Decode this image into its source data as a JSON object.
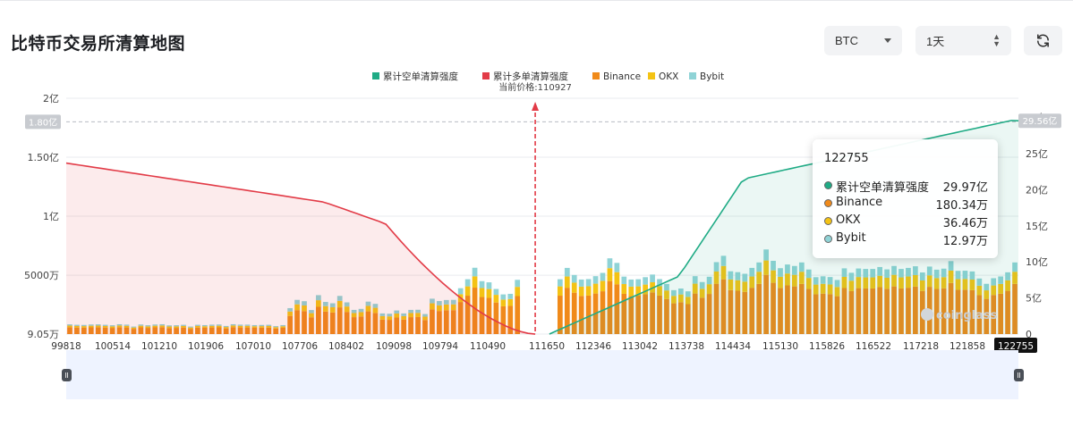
{
  "header": {
    "title": "比特币交易所清算地图",
    "symbol": "BTC",
    "range": "1天",
    "refresh_icon": "refresh-icon"
  },
  "chart_data": {
    "type": "bar",
    "title": "",
    "legend_position": "top-center",
    "current_price_label": "当前价格:110927",
    "current_price": 110927,
    "x_tick_labels": [
      "99818",
      "100514",
      "101210",
      "101906",
      "107010",
      "107706",
      "108402",
      "109098",
      "109794",
      "110490",
      "111650",
      "112346",
      "113042",
      "113738",
      "114434",
      "115130",
      "115826",
      "116522",
      "117218",
      "121858",
      "122755"
    ],
    "y_left_ticks": [
      "9.05万",
      "5000万",
      "1亿",
      "1.50亿",
      "2亿"
    ],
    "y_right_ticks": [
      "0",
      "5亿",
      "10亿",
      "15亿",
      "20亿",
      "25亿",
      "30亿"
    ],
    "y_left_range": [
      90500,
      200000000
    ],
    "y_right_range": [
      0,
      3000000000
    ],
    "left_marker_label": "1.80亿",
    "left_marker_value": 180000000,
    "right_marker_label": "29.56亿",
    "right_marker_value": 2956000000,
    "x_marker_label": "122755",
    "series": [
      {
        "name": "累计空单清算强度",
        "color": "#1fab85",
        "kind": "area-line"
      },
      {
        "name": "累计多单清算强度",
        "color": "#e23b47",
        "kind": "area-line"
      },
      {
        "name": "Binance",
        "color": "#f08a1a",
        "kind": "bar"
      },
      {
        "name": "OKX",
        "color": "#f4c314",
        "kind": "bar"
      },
      {
        "name": "Bybit",
        "color": "#8fd3d6",
        "kind": "bar"
      }
    ],
    "bar_count": 134,
    "bars_total": [
      6.6,
      6.3,
      6.2,
      6.5,
      6.6,
      6.3,
      6.0,
      6.7,
      6.4,
      5.1,
      6.5,
      6.0,
      6.5,
      6.7,
      5.9,
      6.0,
      6.3,
      5.1,
      6.3,
      6.1,
      6.4,
      6.5,
      5.5,
      6.7,
      6.4,
      6.4,
      6.1,
      6.2,
      6.3,
      5.4,
      6.1,
      17.6,
      23.2,
      22.3,
      16.3,
      26.4,
      21.8,
      20.9,
      25.9,
      21.5,
      16.4,
      17.1,
      22.0,
      20.5,
      14.0,
      13.8,
      16.0,
      14.0,
      16.4,
      16.5,
      13.6,
      24.0,
      22.4,
      23.1,
      23.2,
      31.1,
      37.2,
      45.0,
      35.9,
      35.1,
      30.6,
      26.9,
      27.3,
      36.8,
      39.1,
      33.9,
      32.3,
      31.5,
      23.0,
      37.2,
      44.9,
      40.1,
      37.0,
      37.3,
      39.3,
      41.5,
      51.4,
      48.3,
      39.0,
      37.0,
      37.2,
      38.6,
      40.4,
      37.3,
      34.0,
      29.8,
      30.9,
      29.0,
      39.3,
      35.3,
      38.9,
      48.8,
      53.1,
      42.6,
      42.0,
      40.9,
      44.9,
      48.6,
      57.4,
      49.7,
      44.7,
      47.2,
      46.2,
      48.6,
      43.8,
      38.6,
      39.2,
      38.7,
      36.7,
      44.6,
      41.6,
      44.5,
      44.2,
      44.2,
      45.5,
      43.9,
      46.2,
      44.2,
      44.9,
      46.0,
      41.8,
      45.8,
      43.7,
      44.4,
      49.5,
      42.9,
      43.0,
      42.5,
      37.7,
      34.1,
      37.9,
      39.1,
      41.9,
      48.6
    ],
    "notes": "per-bar split approx Binance 70%, OKX 17%, Bybit 13%; bar heights in millions (万 scale omitted)"
  },
  "tooltip": {
    "title": "122755",
    "rows": [
      {
        "label": "累计空单清算强度",
        "value": "29.97亿",
        "color": "#1fab85"
      },
      {
        "label": "Binance",
        "value": "180.34万",
        "color": "#f08a1a"
      },
      {
        "label": "OKX",
        "value": "36.46万",
        "color": "#f4c314"
      },
      {
        "label": "Bybit",
        "value": "12.97万",
        "color": "#8fd3d6"
      }
    ]
  },
  "watermark": "coinglass"
}
